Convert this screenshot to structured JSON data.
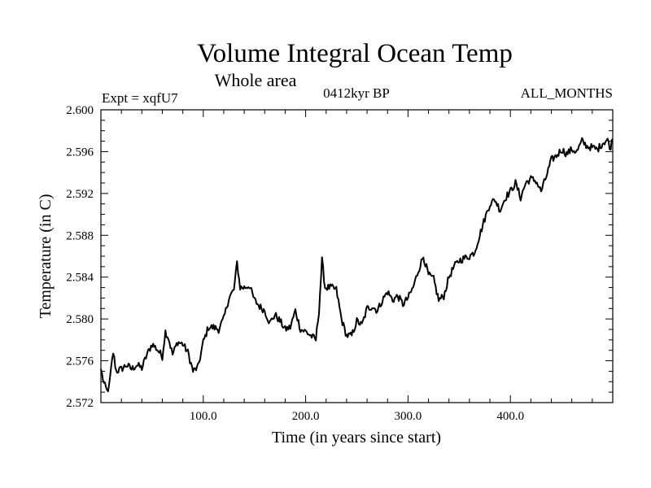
{
  "chart_data": {
    "type": "line",
    "title": "Volume Integral Ocean Temp",
    "subtitle": "Whole area",
    "experiment": "Expt = xqfU7",
    "period": "0412kyr BP",
    "months": "ALL_MONTHS",
    "xlabel": "Time (in years since start)",
    "ylabel": "Temperature (in C)",
    "xlim": [
      0,
      500
    ],
    "ylim": [
      2.572,
      2.6
    ],
    "x_ticks": [
      100,
      200,
      300,
      400
    ],
    "x_tick_labels": [
      "100.0",
      "200.0",
      "300.0",
      "400.0"
    ],
    "y_ticks": [
      2.572,
      2.576,
      2.58,
      2.584,
      2.588,
      2.592,
      2.596,
      2.6
    ],
    "y_tick_labels": [
      "2.572",
      "2.576",
      "2.580",
      "2.584",
      "2.588",
      "2.592",
      "2.596",
      "2.600"
    ],
    "grid": false,
    "series": [
      {
        "name": "Volume integral ocean temperature",
        "keypoints": [
          [
            0,
            2.5752
          ],
          [
            3,
            2.5738
          ],
          [
            6,
            2.5731
          ],
          [
            8,
            2.5735
          ],
          [
            10,
            2.5752
          ],
          [
            12,
            2.5768
          ],
          [
            15,
            2.575
          ],
          [
            20,
            2.5752
          ],
          [
            25,
            2.5756
          ],
          [
            30,
            2.5752
          ],
          [
            35,
            2.5756
          ],
          [
            40,
            2.5753
          ],
          [
            45,
            2.5766
          ],
          [
            50,
            2.5776
          ],
          [
            55,
            2.5771
          ],
          [
            60,
            2.5764
          ],
          [
            63,
            2.5788
          ],
          [
            66,
            2.5782
          ],
          [
            70,
            2.5766
          ],
          [
            75,
            2.5778
          ],
          [
            80,
            2.5776
          ],
          [
            85,
            2.5768
          ],
          [
            90,
            2.575
          ],
          [
            95,
            2.5754
          ],
          [
            100,
            2.5778
          ],
          [
            105,
            2.5792
          ],
          [
            110,
            2.5792
          ],
          [
            115,
            2.579
          ],
          [
            120,
            2.58
          ],
          [
            125,
            2.582
          ],
          [
            130,
            2.5828
          ],
          [
            133,
            2.5854
          ],
          [
            136,
            2.583
          ],
          [
            140,
            2.583
          ],
          [
            145,
            2.5832
          ],
          [
            150,
            2.5818
          ],
          [
            155,
            2.5812
          ],
          [
            160,
            2.5808
          ],
          [
            165,
            2.5796
          ],
          [
            170,
            2.5804
          ],
          [
            175,
            2.5798
          ],
          [
            180,
            2.579
          ],
          [
            185,
            2.5792
          ],
          [
            190,
            2.5808
          ],
          [
            195,
            2.579
          ],
          [
            200,
            2.5788
          ],
          [
            205,
            2.5784
          ],
          [
            210,
            2.578
          ],
          [
            213,
            2.5808
          ],
          [
            216,
            2.5856
          ],
          [
            219,
            2.583
          ],
          [
            225,
            2.583
          ],
          [
            230,
            2.5828
          ],
          [
            235,
            2.58
          ],
          [
            240,
            2.5784
          ],
          [
            245,
            2.5784
          ],
          [
            250,
            2.5798
          ],
          [
            255,
            2.5794
          ],
          [
            260,
            2.581
          ],
          [
            265,
            2.5812
          ],
          [
            270,
            2.5808
          ],
          [
            275,
            2.5818
          ],
          [
            280,
            2.5826
          ],
          [
            285,
            2.5818
          ],
          [
            290,
            2.5822
          ],
          [
            295,
            2.5814
          ],
          [
            300,
            2.582
          ],
          [
            305,
            2.583
          ],
          [
            310,
            2.5846
          ],
          [
            315,
            2.586
          ],
          [
            320,
            2.5842
          ],
          [
            325,
            2.5838
          ],
          [
            330,
            2.5818
          ],
          [
            335,
            2.5822
          ],
          [
            340,
            2.584
          ],
          [
            345,
            2.585
          ],
          [
            350,
            2.5856
          ],
          [
            355,
            2.5858
          ],
          [
            360,
            2.586
          ],
          [
            365,
            2.5864
          ],
          [
            370,
            2.588
          ],
          [
            375,
            2.5896
          ],
          [
            380,
            2.591
          ],
          [
            385,
            2.5914
          ],
          [
            390,
            2.5904
          ],
          [
            395,
            2.5916
          ],
          [
            400,
            2.5922
          ],
          [
            405,
            2.593
          ],
          [
            410,
            2.5916
          ],
          [
            415,
            2.593
          ],
          [
            420,
            2.5934
          ],
          [
            425,
            2.5932
          ],
          [
            430,
            2.5922
          ],
          [
            435,
            2.5936
          ],
          [
            440,
            2.5952
          ],
          [
            445,
            2.5956
          ],
          [
            450,
            2.5962
          ],
          [
            455,
            2.5958
          ],
          [
            460,
            2.5962
          ],
          [
            465,
            2.596
          ],
          [
            470,
            2.597
          ],
          [
            475,
            2.5965
          ],
          [
            480,
            2.5964
          ],
          [
            485,
            2.5962
          ],
          [
            490,
            2.5968
          ],
          [
            495,
            2.5972
          ],
          [
            497,
            2.5962
          ],
          [
            500,
            2.5972
          ]
        ]
      }
    ]
  }
}
